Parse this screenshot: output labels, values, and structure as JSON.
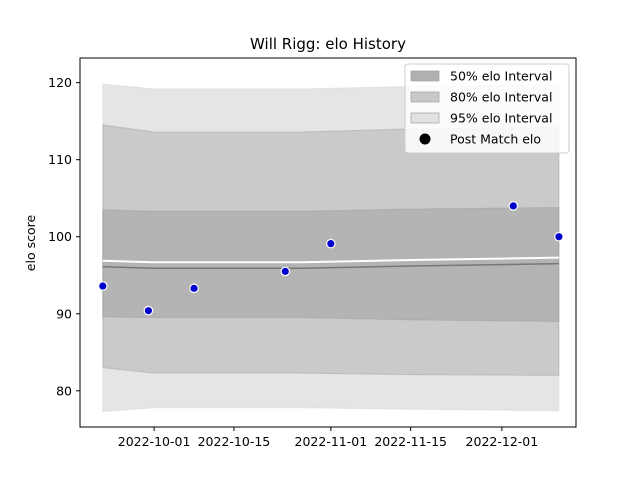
{
  "chart_data": {
    "type": "scatter",
    "title": "Will Rigg: elo History",
    "xlabel": "",
    "ylabel": "elo score",
    "xlim": [
      "2022-09-18",
      "2022-12-14"
    ],
    "ylim": [
      75.3,
      123.2
    ],
    "x_ticks": [
      "2022-10-01",
      "2022-10-15",
      "2022-11-01",
      "2022-11-15",
      "2022-12-01"
    ],
    "y_ticks": [
      80,
      90,
      100,
      110,
      120
    ],
    "grid": false,
    "legend_position": "top-right",
    "bands": [
      {
        "name": "95% elo Interval",
        "color": "#cccccc",
        "opacity": 0.5,
        "x": [
          "2022-09-22",
          "2022-10-01",
          "2022-10-27",
          "2022-11-15",
          "2022-12-11"
        ],
        "lower": [
          77.3,
          77.8,
          77.8,
          77.6,
          77.4
        ],
        "upper": [
          119.8,
          119.2,
          119.2,
          119.5,
          119.8
        ]
      },
      {
        "name": "80% elo Interval",
        "color": "#999999",
        "opacity": 0.35,
        "x": [
          "2022-09-22",
          "2022-10-01",
          "2022-10-27",
          "2022-11-15",
          "2022-12-11"
        ],
        "lower": [
          83.0,
          82.3,
          82.3,
          82.1,
          82.0
        ],
        "upper": [
          114.5,
          113.6,
          113.6,
          114.0,
          114.2
        ]
      },
      {
        "name": "50% elo Interval",
        "color": "#999999",
        "opacity": 0.45,
        "x": [
          "2022-09-22",
          "2022-10-01",
          "2022-10-27",
          "2022-11-15",
          "2022-12-11"
        ],
        "lower": [
          89.6,
          89.5,
          89.5,
          89.2,
          89.0
        ],
        "upper": [
          103.5,
          103.3,
          103.3,
          103.6,
          103.8
        ]
      }
    ],
    "mean_line": {
      "color": "#777777",
      "x": [
        "2022-09-22",
        "2022-10-01",
        "2022-10-27",
        "2022-11-15",
        "2022-12-11"
      ],
      "values": [
        96.1,
        95.9,
        95.9,
        96.2,
        96.5
      ]
    },
    "series": [
      {
        "name": "Post Match elo",
        "color": "#0000cc",
        "x": [
          "2022-09-22",
          "2022-09-30",
          "2022-10-08",
          "2022-10-24",
          "2022-11-01",
          "2022-12-03",
          "2022-12-11"
        ],
        "values": [
          93.6,
          90.4,
          93.3,
          95.5,
          99.1,
          104.0,
          100.0
        ]
      }
    ],
    "legend": {
      "entries": [
        {
          "label": "50% elo Interval",
          "swatch": "#b0b0b0",
          "kind": "band"
        },
        {
          "label": "80% elo Interval",
          "swatch": "#c8c8c8",
          "kind": "band"
        },
        {
          "label": "95% elo Interval",
          "swatch": "#e2e2e2",
          "kind": "band"
        },
        {
          "label": "Post Match elo",
          "swatch": "#000000",
          "kind": "point"
        }
      ]
    }
  }
}
